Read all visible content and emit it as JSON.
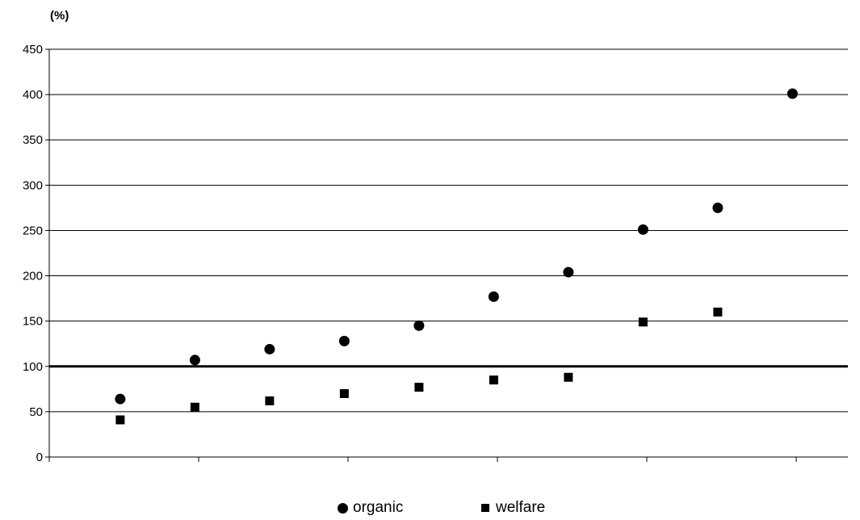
{
  "chart_data": {
    "type": "scatter",
    "title": "",
    "ylabel": "(%)",
    "xlabel": "",
    "ylim": [
      0,
      450
    ],
    "yticks": [
      0,
      50,
      100,
      150,
      200,
      250,
      300,
      350,
      400,
      450
    ],
    "grid": true,
    "reference_line": 100,
    "x_positions": [
      1,
      2,
      3,
      4,
      5,
      6,
      7,
      8,
      9,
      10
    ],
    "series": [
      {
        "name": "organic",
        "marker": "circle",
        "points": [
          [
            1,
            64
          ],
          [
            2,
            107
          ],
          [
            3,
            119
          ],
          [
            4,
            128
          ],
          [
            5,
            145
          ],
          [
            6,
            177
          ],
          [
            7,
            204
          ],
          [
            8,
            251
          ],
          [
            9,
            275
          ],
          [
            10,
            401
          ]
        ]
      },
      {
        "name": "welfare",
        "marker": "square",
        "points": [
          [
            1,
            41
          ],
          [
            2,
            55
          ],
          [
            3,
            62
          ],
          [
            4,
            70
          ],
          [
            5,
            77
          ],
          [
            6,
            85
          ],
          [
            7,
            88
          ],
          [
            8,
            149
          ],
          [
            9,
            160
          ]
        ]
      }
    ],
    "legend_position": "bottom"
  },
  "colors": {
    "marker": "#000000",
    "grid": "#000000",
    "reference_line": "#000000"
  }
}
